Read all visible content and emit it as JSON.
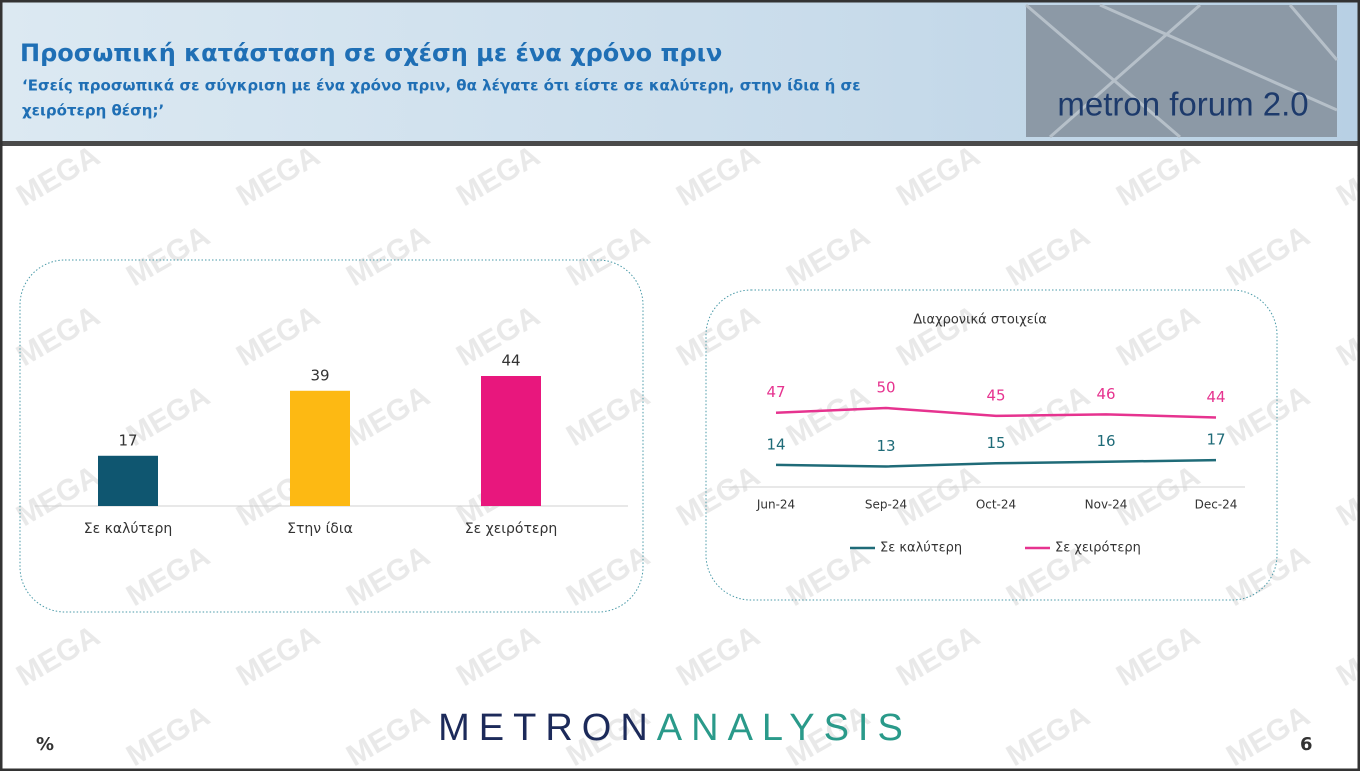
{
  "header": {
    "title": "Προσωπική κατάσταση σε σχέση με ένα χρόνο πριν",
    "subtitle_lines": [
      "‘Εσείς προσωπικά σε σύγκριση με ένα χρόνο πριν, θα λέγατε ότι είστε σε καλύτερη, στην ίδια ή σε",
      "χειρότερη θέση;’"
    ],
    "logo": "metron forum 2.0"
  },
  "watermark": "MEGA",
  "chart_data": [
    {
      "type": "bar",
      "categories": [
        "Σε καλύτερη",
        "Στην ίδια",
        "Σε χειρότερη"
      ],
      "values": [
        17,
        39,
        44
      ],
      "colors": [
        "#0f5670",
        "#fdb913",
        "#e8177d"
      ]
    },
    {
      "type": "line",
      "title": "Διαχρονικά στοιχεία",
      "categories": [
        "Jun-24",
        "Sep-24",
        "Oct-24",
        "Nov-24",
        "Dec-24"
      ],
      "series": [
        {
          "name": "Σε καλύτερη",
          "color": "#1f6b78",
          "values": [
            14,
            13,
            15,
            16,
            17
          ]
        },
        {
          "name": "Σε χειρότερη",
          "color": "#e6338f",
          "values": [
            47,
            50,
            45,
            46,
            44
          ]
        }
      ]
    }
  ],
  "footer": {
    "unit": "%",
    "brand_first": "METRON",
    "brand_second": "ANALYSIS",
    "page": "6"
  }
}
